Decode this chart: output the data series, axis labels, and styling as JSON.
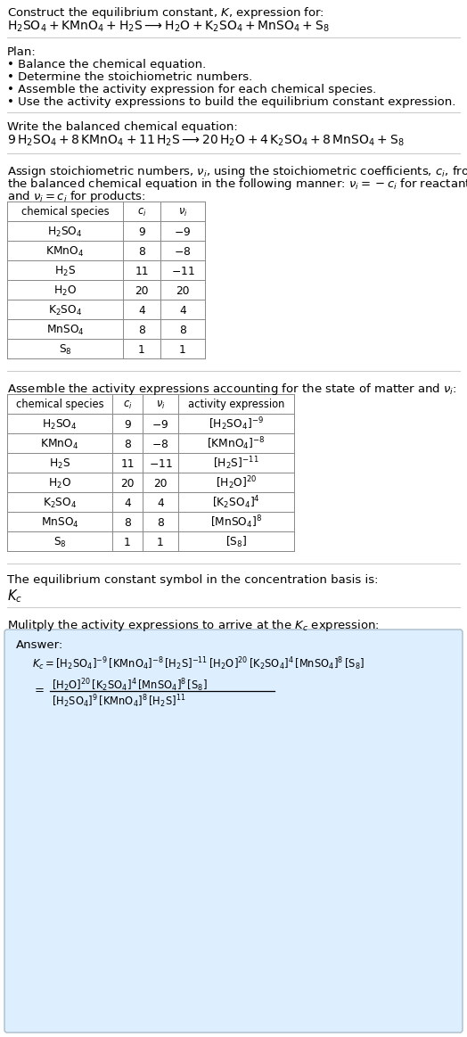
{
  "title_line1": "Construct the equilibrium constant, $K$, expression for:",
  "title_line2": "$\\mathrm{H_2SO_4 + KMnO_4 + H_2S \\longrightarrow H_2O + K_2SO_4 + MnSO_4 + S_8}$",
  "plan_header": "Plan:",
  "plan_items": [
    "• Balance the chemical equation.",
    "• Determine the stoichiometric numbers.",
    "• Assemble the activity expression for each chemical species.",
    "• Use the activity expressions to build the equilibrium constant expression."
  ],
  "balanced_eq_header": "Write the balanced chemical equation:",
  "balanced_eq": "$9\\,\\mathrm{H_2SO_4} + 8\\,\\mathrm{KMnO_4} + 11\\,\\mathrm{H_2S} \\longrightarrow 20\\,\\mathrm{H_2O} + 4\\,\\mathrm{K_2SO_4} + 8\\,\\mathrm{MnSO_4} + \\mathrm{S_8}$",
  "stoich_intro_1": "Assign stoichiometric numbers, $\\nu_i$, using the stoichiometric coefficients, $c_i$, from",
  "stoich_intro_2": "the balanced chemical equation in the following manner: $\\nu_i = -c_i$ for reactants",
  "stoich_intro_3": "and $\\nu_i = c_i$ for products:",
  "table1_headers": [
    "chemical species",
    "$c_i$",
    "$\\nu_i$"
  ],
  "table1_rows": [
    [
      "$\\mathrm{H_2SO_4}$",
      "9",
      "$-9$"
    ],
    [
      "$\\mathrm{KMnO_4}$",
      "8",
      "$-8$"
    ],
    [
      "$\\mathrm{H_2S}$",
      "11",
      "$-11$"
    ],
    [
      "$\\mathrm{H_2O}$",
      "20",
      "20"
    ],
    [
      "$\\mathrm{K_2SO_4}$",
      "4",
      "4"
    ],
    [
      "$\\mathrm{MnSO_4}$",
      "8",
      "8"
    ],
    [
      "$\\mathrm{S_8}$",
      "1",
      "1"
    ]
  ],
  "activity_intro": "Assemble the activity expressions accounting for the state of matter and $\\nu_i$:",
  "table2_headers": [
    "chemical species",
    "$c_i$",
    "$\\nu_i$",
    "activity expression"
  ],
  "table2_rows": [
    [
      "$\\mathrm{H_2SO_4}$",
      "9",
      "$-9$",
      "$[\\mathrm{H_2SO_4}]^{-9}$"
    ],
    [
      "$\\mathrm{KMnO_4}$",
      "8",
      "$-8$",
      "$[\\mathrm{KMnO_4}]^{-8}$"
    ],
    [
      "$\\mathrm{H_2S}$",
      "11",
      "$-11$",
      "$[\\mathrm{H_2S}]^{-11}$"
    ],
    [
      "$\\mathrm{H_2O}$",
      "20",
      "20",
      "$[\\mathrm{H_2O}]^{20}$"
    ],
    [
      "$\\mathrm{K_2SO_4}$",
      "4",
      "4",
      "$[\\mathrm{K_2SO_4}]^4$"
    ],
    [
      "$\\mathrm{MnSO_4}$",
      "8",
      "8",
      "$[\\mathrm{MnSO_4}]^8$"
    ],
    [
      "$\\mathrm{S_8}$",
      "1",
      "1",
      "$[\\mathrm{S_8}]$"
    ]
  ],
  "Kc_symbol_intro": "The equilibrium constant symbol in the concentration basis is:",
  "Kc_symbol": "$K_c$",
  "multiply_intro": "Mulitply the activity expressions to arrive at the $K_c$ expression:",
  "answer_label": "Answer:",
  "answer_line1": "$K_c = [\\mathrm{H_2SO_4}]^{-9}\\,[\\mathrm{KMnO_4}]^{-8}\\,[\\mathrm{H_2S}]^{-11}\\,[\\mathrm{H_2O}]^{20}\\,[\\mathrm{K_2SO_4}]^4\\,[\\mathrm{MnSO_4}]^8\\,[\\mathrm{S_8}]$",
  "answer_line2_num": "$[\\mathrm{H_2O}]^{20}\\,[\\mathrm{K_2SO_4}]^4\\,[\\mathrm{MnSO_4}]^8\\,[\\mathrm{S_8}]$",
  "answer_line2_den": "$[\\mathrm{H_2SO_4}]^9\\,[\\mathrm{KMnO_4}]^8\\,[\\mathrm{H_2S}]^{11}$",
  "bg_color": "#ffffff",
  "table_border_color": "#888888",
  "answer_box_color": "#ddeeff",
  "answer_box_border": "#aabbcc",
  "text_color": "#000000",
  "divider_color": "#cccccc",
  "font_size": 9.5,
  "small_font": 8.8
}
